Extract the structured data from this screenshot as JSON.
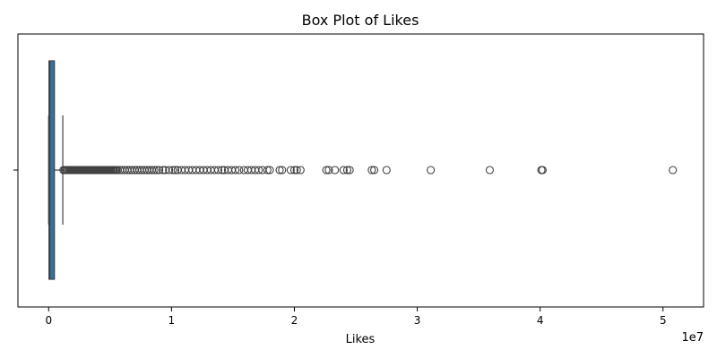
{
  "chart_data": {
    "type": "box",
    "title": "Box Plot of Likes",
    "xlabel": "Likes",
    "ylabel": "",
    "offset_text": "1e7",
    "scale_factor": 10000000,
    "orientation": "horizontal",
    "xlim": [
      -2500000,
      53300000
    ],
    "x_ticks": [
      0,
      10000000,
      20000000,
      30000000,
      40000000,
      50000000
    ],
    "x_tick_labels": [
      "0",
      "1",
      "2",
      "3",
      "4",
      "5"
    ],
    "grid": false,
    "legend": "none",
    "box": {
      "min": 0,
      "q1": 30000,
      "median": 100000,
      "q3": 470000,
      "max": 1150000
    },
    "outliers": [
      1200000,
      1300000,
      1400000,
      1500000,
      1600000,
      1700000,
      1800000,
      1900000,
      2000000,
      2100000,
      2200000,
      2300000,
      2400000,
      2500000,
      2600000,
      2700000,
      2800000,
      2900000,
      3000000,
      3100000,
      3200000,
      3300000,
      3400000,
      3500000,
      3600000,
      3700000,
      3800000,
      3900000,
      4000000,
      4100000,
      4200000,
      4300000,
      4400000,
      4500000,
      4600000,
      4700000,
      4800000,
      4900000,
      5000000,
      5100000,
      5200000,
      5300000,
      5400000,
      5500000,
      5600000,
      5800000,
      6000000,
      6200000,
      6400000,
      6600000,
      6800000,
      7000000,
      7200000,
      7400000,
      7600000,
      7800000,
      8000000,
      8200000,
      8400000,
      8600000,
      8800000,
      9000000,
      9300000,
      9500000,
      9800000,
      10100000,
      10300000,
      10500000,
      10800000,
      11100000,
      11400000,
      11700000,
      12000000,
      12300000,
      12600000,
      12900000,
      13200000,
      13500000,
      13800000,
      14100000,
      14300000,
      14600000,
      14900000,
      15200000,
      15500000,
      15900000,
      16200000,
      16500000,
      16800000,
      17100000,
      17400000,
      17800000,
      18000000,
      18800000,
      19000000,
      19700000,
      20000000,
      20200000,
      20500000,
      22600000,
      22800000,
      23300000,
      24000000,
      24300000,
      24500000,
      26300000,
      26500000,
      27500000,
      31100000,
      35900000,
      40100000,
      40200000,
      50800000
    ],
    "colors": {
      "box_fill": "#3274a1",
      "lines": "#3f3f3f",
      "axes": "#000000"
    }
  }
}
